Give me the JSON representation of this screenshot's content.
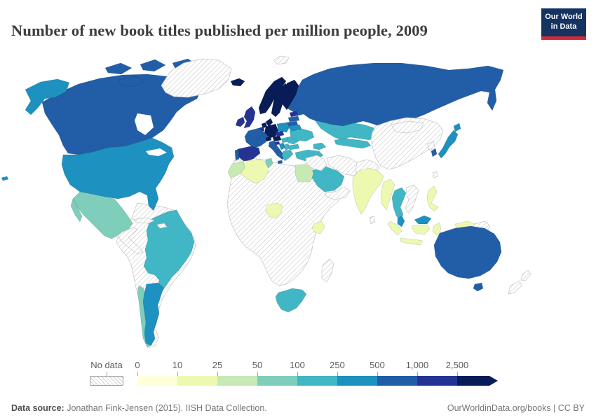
{
  "header": {
    "title": "Number of new book titles published per million people, 2009",
    "logo": {
      "line1": "Our World",
      "line2": "in Data",
      "bg_color": "#153360",
      "accent_color": "#d42b3a"
    }
  },
  "legend": {
    "no_data_label": "No data",
    "ticks": [
      "0",
      "10",
      "25",
      "50",
      "100",
      "250",
      "500",
      "1,000",
      "2,500"
    ]
  },
  "footer": {
    "source_label": "Data source:",
    "source_text": " Jonathan Fink-Jensen (2015). IISH Data Collection.",
    "credit": "OurWorldinData.org/books | CC BY"
  },
  "chart_data": {
    "type": "heatmap",
    "subtype": "choropleth_world_map",
    "title": "Number of new book titles published per million people, 2009",
    "unit": "new book titles per million people",
    "legend_position": "bottom",
    "bins": [
      {
        "label": "0–10",
        "color": "#ffffd9"
      },
      {
        "label": "10–25",
        "color": "#edf8b1"
      },
      {
        "label": "25–50",
        "color": "#c7e9b4"
      },
      {
        "label": "50–100",
        "color": "#7fcdbb"
      },
      {
        "label": "100–250",
        "color": "#41b6c4"
      },
      {
        "label": "250–500",
        "color": "#1d91c0"
      },
      {
        "label": "500–1,000",
        "color": "#225ea8"
      },
      {
        "label": "1,000–2,500",
        "color": "#253494"
      },
      {
        "label": "2,500+",
        "color": "#081d58"
      }
    ],
    "countries": {
      "Norway": "2,500+",
      "Sweden": "2,500+",
      "Finland": "2,500+",
      "Denmark": "2,500+",
      "Iceland": "2,500+",
      "Germany": "2,500+",
      "Netherlands": "2,500+",
      "Switzerland": "2,500+",
      "Austria": "2,500+",
      "United Kingdom": "1,000–2,500",
      "Ireland": "1,000–2,500",
      "Spain": "1,000–2,500",
      "Belgium": "1,000–2,500",
      "Czechia": "1,000–2,500",
      "Estonia": "1,000–2,500",
      "Slovenia": "1,000–2,500",
      "Canada": "500–1,000",
      "Russia": "500–1,000",
      "Australia": "500–1,000",
      "France": "500–1,000",
      "Italy": "500–1,000",
      "Portugal": "500–1,000",
      "South Korea": "500–1,000",
      "Latvia": "500–1,000",
      "Lithuania": "500–1,000",
      "United States": "250–500",
      "Argentina": "250–500",
      "Japan": "250–500",
      "Poland": "250–500",
      "Belarus": "250–500",
      "Croatia": "250–500",
      "Malaysia": "250–500",
      "Brazil": "100–250",
      "Turkey": "100–250",
      "Ukraine": "100–250",
      "Romania": "100–250",
      "Bulgaria": "100–250",
      "Greece": "100–250",
      "Serbia": "100–250",
      "Hungary": "100–250",
      "Kazakhstan": "100–250",
      "Uzbekistan": "100–250",
      "Georgia": "100–250",
      "Armenia": "100–250",
      "Azerbaijan": "100–250",
      "Saudi Arabia": "100–250",
      "Israel": "100–250",
      "Thailand": "100–250",
      "South Africa": "100–250",
      "Mexico": "50–100",
      "Chile": "50–100",
      "Tunisia": "50–100",
      "Morocco": "25–50",
      "Egypt": "25–50",
      "Algeria": "10–25",
      "Nigeria": "10–25",
      "Kenya": "10–25",
      "India": "10–25",
      "Myanmar": "10–25",
      "Indonesia": "10–25",
      "Philippines": "10–25"
    },
    "no_data_countries": [
      "Greenland",
      "Svalbard",
      "Cuba",
      "Haiti",
      "Dominican Republic",
      "Guatemala",
      "Honduras",
      "Nicaragua",
      "Costa Rica",
      "Panama",
      "Colombia",
      "Venezuela",
      "Ecuador",
      "Peru",
      "Bolivia",
      "Paraguay",
      "Uruguay",
      "Guyana",
      "Suriname",
      "Libya",
      "Mauritania",
      "Mali",
      "Niger",
      "Chad",
      "Sudan",
      "Ethiopia",
      "Somalia",
      "Senegal",
      "Guinea",
      "Ghana",
      "Ivory Coast",
      "Cameroon",
      "DR Congo",
      "Angola",
      "Zambia",
      "Zimbabwe",
      "Mozambique",
      "Tanzania",
      "Namibia",
      "Botswana",
      "Madagascar",
      "Syria",
      "Iraq",
      "Jordan",
      "Iran",
      "Afghanistan",
      "Pakistan",
      "Yemen",
      "Oman",
      "China",
      "Mongolia",
      "North Korea",
      "Taiwan",
      "Sri Lanka",
      "Vietnam",
      "Laos",
      "Cambodia",
      "Papua New Guinea",
      "New Zealand"
    ]
  }
}
